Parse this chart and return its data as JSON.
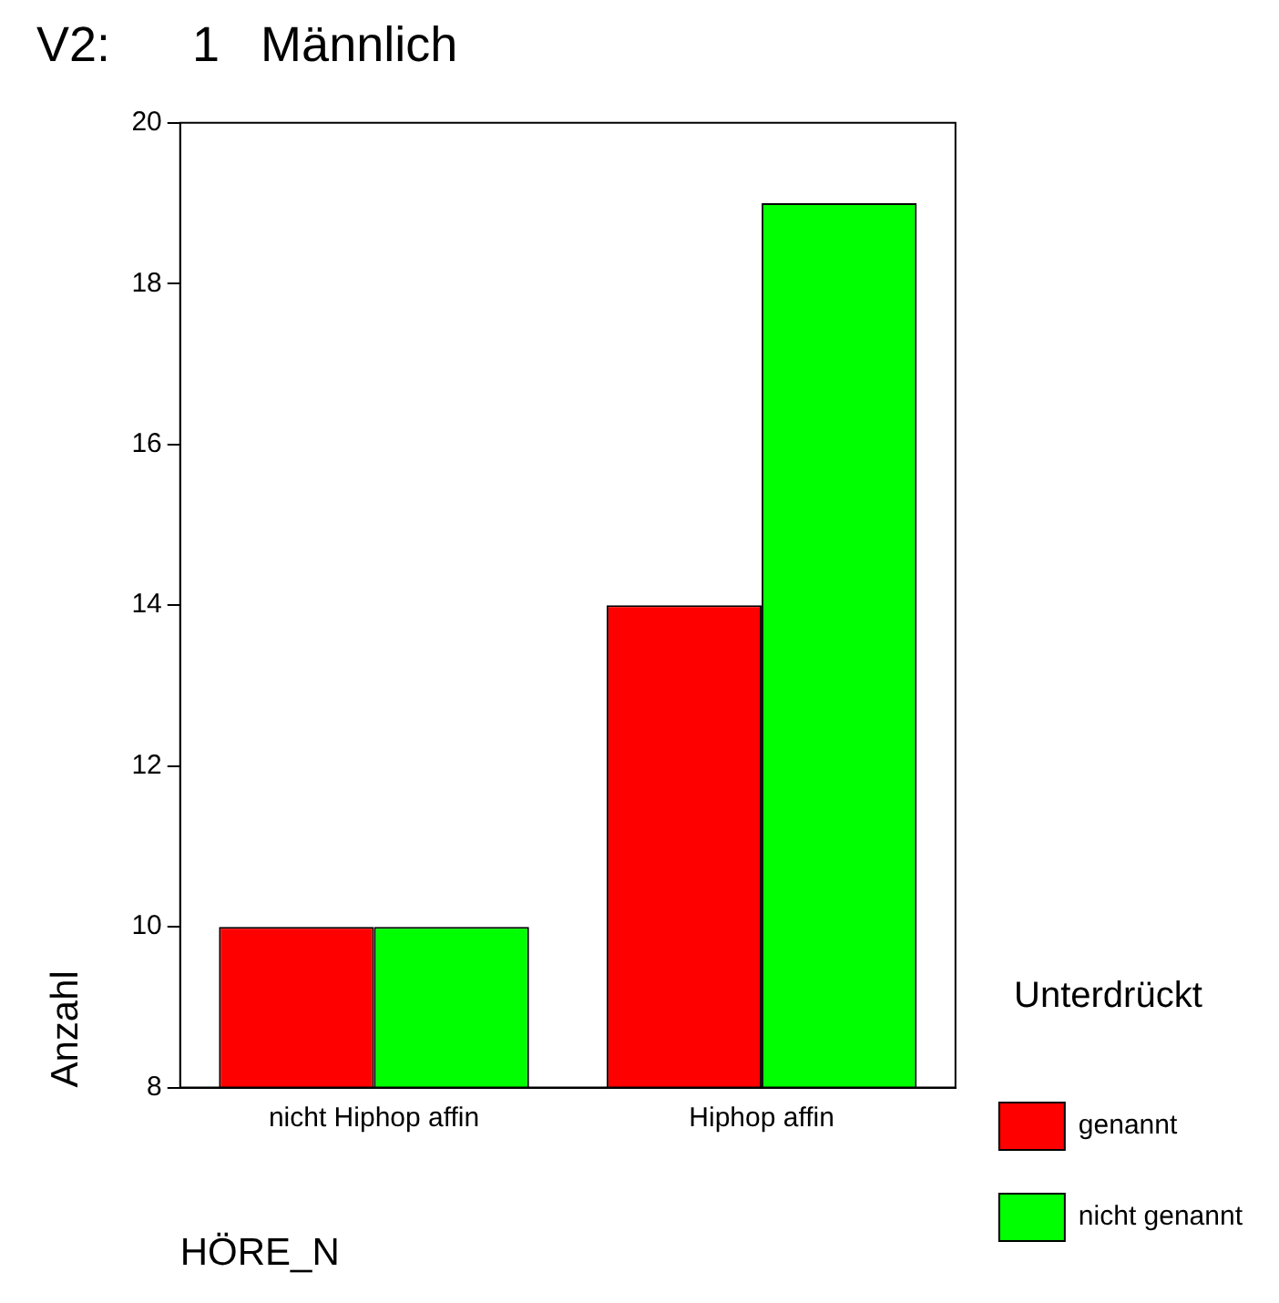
{
  "chart_data": {
    "type": "bar",
    "title": "V2:      1   Männlich",
    "xlabel": "HÖRE_N",
    "ylabel": "Anzahl",
    "legend_title": "Unterdrückt",
    "categories": [
      "nicht Hiphop affin",
      "Hiphop affin"
    ],
    "series": [
      {
        "name": "genannt",
        "color": "#ff0000",
        "values": [
          10,
          14
        ]
      },
      {
        "name": "nicht genannt",
        "color": "#00ff00",
        "values": [
          10,
          19
        ]
      }
    ],
    "ylim": [
      8,
      20
    ],
    "yticks": [
      8,
      10,
      12,
      14,
      16,
      18,
      20
    ],
    "grid": false,
    "legend": "right"
  }
}
